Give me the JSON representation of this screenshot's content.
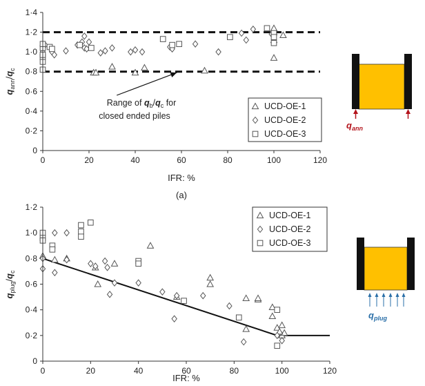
{
  "chart_data": [
    {
      "type": "scatter",
      "panel_label": "(a)",
      "xlabel": "IFR: %",
      "ylabel_main": "q",
      "ylabel_sub1": "ann",
      "ylabel_sep": "/",
      "ylabel_main2": "q",
      "ylabel_sub2": "c",
      "xlim": [
        0,
        120
      ],
      "ylim": [
        0,
        1.4
      ],
      "x_ticks": [
        0,
        20,
        40,
        60,
        80,
        100,
        120
      ],
      "y_ticks": [
        "0",
        "0·2",
        "0·4",
        "0·6",
        "0·8",
        "1·0",
        "1·2",
        "1·4"
      ],
      "y_tick_values": [
        0,
        0.2,
        0.4,
        0.6,
        0.8,
        1.0,
        1.2,
        1.4
      ],
      "reference_lines": [
        1.2,
        0.8
      ],
      "annotation": {
        "line1_prefix": "Range of ",
        "line1_q1": "q",
        "line1_sub1": "b",
        "line1_sep": "/",
        "line1_q2": "q",
        "line1_sub2": "c",
        "line1_suffix": " for",
        "line2": "closed ended piles",
        "arrow_from": [
          32,
          0.56
        ],
        "arrow_to": [
          58,
          0.79
        ]
      },
      "legend_position": "bottom-right",
      "series": [
        {
          "name": "UCD-OE-1",
          "marker": "triangle",
          "points": [
            [
              22,
              0.79
            ],
            [
              23,
              0.79
            ],
            [
              30,
              0.85
            ],
            [
              40,
              0.79
            ],
            [
              44,
              0.84
            ],
            [
              70,
              0.81
            ],
            [
              100,
              0.94
            ],
            [
              100,
              1.12
            ],
            [
              100,
              1.2
            ],
            [
              100,
              1.24
            ],
            [
              104,
              1.17
            ]
          ]
        },
        {
          "name": "UCD-OE-2",
          "marker": "diamond",
          "points": [
            [
              0,
              1.0
            ],
            [
              1,
              1.07
            ],
            [
              4,
              1.0
            ],
            [
              5,
              0.97
            ],
            [
              10,
              1.01
            ],
            [
              15,
              1.07
            ],
            [
              17,
              1.1
            ],
            [
              18,
              1.16
            ],
            [
              18,
              1.04
            ],
            [
              19,
              1.03
            ],
            [
              20,
              1.1
            ],
            [
              25,
              0.99
            ],
            [
              27,
              1.01
            ],
            [
              30,
              1.04
            ],
            [
              38,
              1.0
            ],
            [
              40,
              1.02
            ],
            [
              43,
              1.0
            ],
            [
              55,
              1.05
            ],
            [
              56,
              1.03
            ],
            [
              66,
              1.08
            ],
            [
              76,
              1.0
            ],
            [
              86,
              1.19
            ],
            [
              88,
              1.12
            ],
            [
              91,
              1.23
            ],
            [
              99,
              1.18
            ],
            [
              100,
              1.16
            ],
            [
              100,
              1.13
            ]
          ]
        },
        {
          "name": "UCD-OE-3",
          "marker": "square",
          "points": [
            [
              0,
              0.82
            ],
            [
              0,
              0.9
            ],
            [
              0,
              0.95
            ],
            [
              0,
              0.97
            ],
            [
              0,
              1.04
            ],
            [
              0,
              1.08
            ],
            [
              3,
              1.05
            ],
            [
              4,
              1.03
            ],
            [
              16,
              1.07
            ],
            [
              21,
              1.04
            ],
            [
              52,
              1.13
            ],
            [
              56,
              1.07
            ],
            [
              59,
              1.08
            ],
            [
              81,
              1.15
            ],
            [
              97,
              1.24
            ],
            [
              100,
              1.19
            ],
            [
              100,
              1.15
            ],
            [
              100,
              1.09
            ]
          ]
        }
      ]
    },
    {
      "type": "scatter",
      "xlabel": "IFR: %",
      "ylabel_main": "q",
      "ylabel_sub1": "plug",
      "ylabel_sep": "/",
      "ylabel_main2": "q",
      "ylabel_sub2": "c",
      "xlim": [
        0,
        120
      ],
      "ylim": [
        0,
        1.2
      ],
      "x_ticks": [
        0,
        20,
        40,
        60,
        80,
        100,
        120
      ],
      "y_ticks": [
        "0",
        "0·2",
        "0·4",
        "0·6",
        "0·8",
        "1·0",
        "1·2"
      ],
      "y_tick_values": [
        0,
        0.2,
        0.4,
        0.6,
        0.8,
        1.0,
        1.2
      ],
      "trend_line": [
        [
          0,
          0.8
        ],
        [
          98,
          0.2
        ],
        [
          120,
          0.2
        ]
      ],
      "legend_position": "top-right",
      "series": [
        {
          "name": "UCD-OE-1",
          "marker": "triangle",
          "points": [
            [
              0,
              0.82
            ],
            [
              5,
              0.79
            ],
            [
              10,
              0.8
            ],
            [
              22,
              0.73
            ],
            [
              23,
              0.6
            ],
            [
              30,
              0.76
            ],
            [
              45,
              0.9
            ],
            [
              56,
              0.5
            ],
            [
              70,
              0.65
            ],
            [
              70,
              0.6
            ],
            [
              85,
              0.49
            ],
            [
              85,
              0.25
            ],
            [
              90,
              0.48
            ],
            [
              90,
              0.49
            ],
            [
              96,
              0.42
            ],
            [
              96,
              0.35
            ],
            [
              98,
              0.26
            ],
            [
              100,
              0.28
            ],
            [
              100,
              0.2
            ],
            [
              101,
              0.22
            ],
            [
              99,
              0.23
            ]
          ]
        },
        {
          "name": "UCD-OE-2",
          "marker": "diamond",
          "points": [
            [
              0,
              0.8
            ],
            [
              0,
              0.72
            ],
            [
              5,
              1.0
            ],
            [
              5,
              0.69
            ],
            [
              10,
              1.0
            ],
            [
              10,
              0.79
            ],
            [
              20,
              0.76
            ],
            [
              22,
              0.74
            ],
            [
              26,
              0.78
            ],
            [
              27,
              0.73
            ],
            [
              28,
              0.52
            ],
            [
              30,
              0.61
            ],
            [
              40,
              0.61
            ],
            [
              50,
              0.54
            ],
            [
              55,
              0.33
            ],
            [
              56,
              0.51
            ],
            [
              67,
              0.51
            ],
            [
              78,
              0.43
            ],
            [
              84,
              0.15
            ],
            [
              98,
              0.2
            ],
            [
              100,
              0.16
            ]
          ]
        },
        {
          "name": "UCD-OE-3",
          "marker": "square",
          "points": [
            [
              0,
              1.0
            ],
            [
              0,
              0.96
            ],
            [
              0,
              0.94
            ],
            [
              4,
              0.9
            ],
            [
              4,
              0.87
            ],
            [
              16,
              1.06
            ],
            [
              16,
              1.01
            ],
            [
              16,
              0.97
            ],
            [
              20,
              1.08
            ],
            [
              40,
              0.78
            ],
            [
              40,
              0.76
            ],
            [
              59,
              0.47
            ],
            [
              82,
              0.34
            ],
            [
              98,
              0.12
            ],
            [
              98,
              0.4
            ]
          ]
        }
      ]
    }
  ],
  "insets": {
    "top_label_main": "q",
    "top_label_sub": "ann",
    "bottom_label_main": "q",
    "bottom_label_sub": "plug",
    "label_color": "#b3131b",
    "bottom_label_color": "#2a6fa8",
    "fill_color": "#ffc000",
    "wall_color": "#111111"
  }
}
